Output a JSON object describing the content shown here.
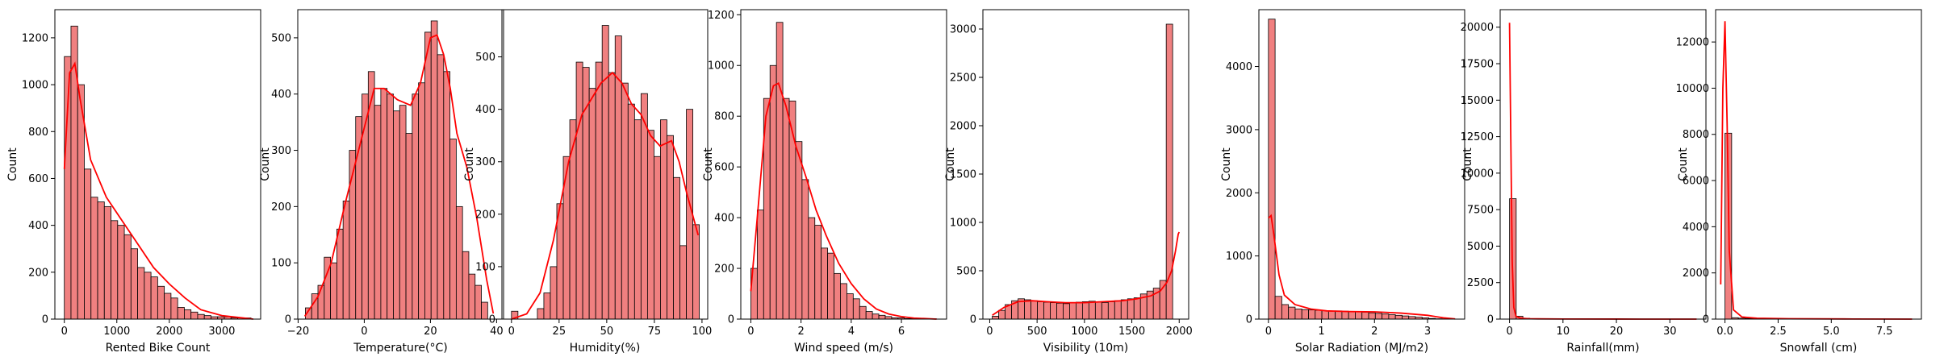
{
  "colors": {
    "bar_fill": "#f08080",
    "bar_edge": "#000000",
    "kde_line": "#ff0000",
    "axes": "#000000"
  },
  "chart_data": [
    {
      "type": "bar",
      "subtype": "histogram_kde",
      "xlabel": "Rented Bike Count",
      "ylabel": "Count",
      "xlim": [
        -180,
        3740
      ],
      "ylim": [
        0,
        1320
      ],
      "xticks": [
        0,
        1000,
        2000,
        3000
      ],
      "yticks": [
        0,
        200,
        400,
        600,
        800,
        1000,
        1200
      ],
      "xtick_labels": [
        "0",
        "1000",
        "2000",
        "3000"
      ],
      "ytick_labels": [
        "0",
        "200",
        "400",
        "600",
        "800",
        "1000",
        "1200"
      ],
      "bin_start": 0,
      "bin_width": 127,
      "values": [
        1120,
        1250,
        1000,
        640,
        520,
        500,
        480,
        420,
        400,
        360,
        300,
        220,
        200,
        180,
        140,
        110,
        90,
        50,
        40,
        30,
        20,
        15,
        10,
        10,
        10,
        5,
        5,
        5
      ],
      "kde": {
        "x": [
          0,
          100,
          200,
          300,
          500,
          800,
          1100,
          1400,
          1700,
          2000,
          2300,
          2600,
          3000,
          3400,
          3600
        ],
        "y": [
          640,
          1050,
          1090,
          940,
          680,
          520,
          420,
          320,
          220,
          150,
          90,
          40,
          15,
          5,
          0
        ]
      }
    },
    {
      "type": "bar",
      "subtype": "histogram_kde",
      "xlabel": "Temperature(°C)",
      "ylabel": "Count",
      "xlim": [
        -20.1,
        42.1
      ],
      "ylim": [
        0,
        550
      ],
      "xticks": [
        -20,
        0,
        20,
        40
      ],
      "yticks": [
        0,
        100,
        200,
        300,
        400,
        500
      ],
      "xtick_labels": [
        "−20",
        "0",
        "20",
        "40"
      ],
      "ytick_labels": [
        "0",
        "100",
        "200",
        "300",
        "400",
        "500"
      ],
      "bin_start": -17.8,
      "bin_width": 1.9,
      "values": [
        20,
        45,
        60,
        110,
        100,
        160,
        210,
        300,
        360,
        400,
        440,
        380,
        410,
        400,
        370,
        380,
        330,
        400,
        420,
        510,
        530,
        470,
        440,
        320,
        200,
        120,
        80,
        60,
        30
      ],
      "kde": {
        "x": [
          -18,
          -14,
          -10,
          -6,
          -3,
          0,
          3,
          6,
          10,
          14,
          17,
          20,
          22,
          24,
          26,
          28,
          31,
          34,
          37,
          39
        ],
        "y": [
          5,
          40,
          100,
          200,
          270,
          340,
          410,
          410,
          390,
          380,
          420,
          500,
          505,
          470,
          410,
          330,
          270,
          180,
          70,
          10
        ]
      }
    },
    {
      "type": "bar",
      "subtype": "histogram_kde",
      "xlabel": "Humidity(%)",
      "ylabel": "Count",
      "xlim": [
        -5,
        103
      ],
      "ylim": [
        0,
        590
      ],
      "xticks": [
        0,
        25,
        50,
        75,
        100
      ],
      "yticks": [
        0,
        100,
        200,
        300,
        400,
        500
      ],
      "xtick_labels": [
        "0",
        "25",
        "50",
        "75",
        "100"
      ],
      "ytick_labels": [
        "0",
        "100",
        "200",
        "300",
        "400",
        "500"
      ],
      "bin_start": 0,
      "bin_width": 3.4,
      "values": [
        15,
        0,
        0,
        0,
        20,
        50,
        100,
        220,
        310,
        380,
        490,
        480,
        440,
        490,
        560,
        470,
        540,
        450,
        410,
        380,
        430,
        360,
        310,
        380,
        350,
        270,
        140,
        400,
        180
      ],
      "kde": {
        "x": [
          0,
          8,
          15,
          22,
          30,
          37,
          42,
          47,
          53,
          58,
          63,
          68,
          73,
          78,
          84,
          88,
          92,
          95,
          98
        ],
        "y": [
          0,
          10,
          50,
          150,
          300,
          390,
          420,
          450,
          470,
          450,
          410,
          390,
          350,
          330,
          340,
          300,
          240,
          200,
          160
        ]
      }
    },
    {
      "type": "bar",
      "subtype": "histogram_kde",
      "xlabel": "Wind speed (m/s)",
      "ylabel": "Count",
      "xlim": [
        -0.4,
        7.8
      ],
      "ylim": [
        0,
        1220
      ],
      "xticks": [
        0,
        2,
        4,
        6
      ],
      "yticks": [
        0,
        200,
        400,
        600,
        800,
        1000,
        1200
      ],
      "xtick_labels": [
        "0",
        "2",
        "4",
        "6"
      ],
      "ytick_labels": [
        "0",
        "200",
        "400",
        "600",
        "800",
        "1000",
        "1200"
      ],
      "bin_start": 0,
      "bin_width": 0.255,
      "values": [
        200,
        430,
        870,
        1000,
        1170,
        870,
        860,
        700,
        550,
        400,
        370,
        280,
        260,
        180,
        140,
        100,
        80,
        50,
        30,
        20,
        15,
        10,
        5,
        5,
        2,
        2,
        1,
        1,
        1
      ],
      "kde": {
        "x": [
          0,
          0.3,
          0.6,
          0.9,
          1.1,
          1.4,
          1.8,
          2.2,
          2.6,
          3,
          3.5,
          4,
          4.5,
          5,
          5.5,
          6,
          6.5,
          7.4
        ],
        "y": [
          110,
          450,
          800,
          920,
          930,
          840,
          680,
          560,
          430,
          330,
          220,
          140,
          80,
          40,
          20,
          10,
          4,
          0
        ]
      }
    },
    {
      "type": "bar",
      "subtype": "histogram_kde",
      "xlabel": "Visibility (10m)",
      "ylabel": "Count",
      "xlim": [
        -72,
        2100
      ],
      "ylim": [
        0,
        3200
      ],
      "xticks": [
        0,
        500,
        1000,
        1500,
        2000
      ],
      "yticks": [
        0,
        500,
        1000,
        1500,
        2000,
        2500,
        3000
      ],
      "xtick_labels": [
        "0",
        "500",
        "1000",
        "1500",
        "2000"
      ],
      "ytick_labels": [
        "0",
        "500",
        "1000",
        "1500",
        "2000",
        "2500",
        "3000"
      ],
      "bin_start": 27,
      "bin_width": 68,
      "values": [
        30,
        90,
        150,
        190,
        210,
        200,
        190,
        180,
        175,
        170,
        165,
        160,
        170,
        175,
        180,
        185,
        175,
        170,
        180,
        190,
        200,
        210,
        220,
        260,
        290,
        320,
        400,
        3050
      ],
      "kde": {
        "x": [
          27,
          150,
          300,
          450,
          600,
          800,
          1000,
          1200,
          1400,
          1550,
          1700,
          1800,
          1870,
          1920,
          1960,
          1990,
          2000
        ],
        "y": [
          40,
          120,
          180,
          190,
          180,
          170,
          170,
          180,
          190,
          210,
          240,
          290,
          380,
          500,
          700,
          880,
          900
        ]
      }
    },
    {
      "type": "bar",
      "subtype": "histogram_kde",
      "xlabel": "Solar Radiation (MJ/m2)",
      "ylabel": "Count",
      "xlim": [
        -0.18,
        3.7
      ],
      "ylim": [
        0,
        4900
      ],
      "xticks": [
        0,
        1,
        2,
        3
      ],
      "yticks": [
        0,
        1000,
        2000,
        3000,
        4000
      ],
      "xtick_labels": [
        "0",
        "1",
        "2",
        "3"
      ],
      "ytick_labels": [
        "0",
        "1000",
        "2000",
        "3000",
        "4000"
      ],
      "bin_start": 0,
      "bin_width": 0.126,
      "values": [
        4750,
        360,
        230,
        190,
        160,
        150,
        145,
        140,
        135,
        130,
        130,
        125,
        120,
        115,
        110,
        100,
        90,
        80,
        70,
        60,
        50,
        40,
        30,
        20,
        10,
        5,
        3,
        1
      ],
      "kde": {
        "x": [
          0,
          0.05,
          0.1,
          0.2,
          0.3,
          0.5,
          0.8,
          1.1,
          1.5,
          2,
          2.5,
          3,
          3.3,
          3.52
        ],
        "y": [
          1600,
          1640,
          1350,
          700,
          380,
          230,
          160,
          130,
          120,
          115,
          95,
          60,
          20,
          3
        ]
      }
    },
    {
      "type": "bar",
      "subtype": "histogram_kde",
      "xlabel": "Rainfall(mm)",
      "ylabel": "Count",
      "xlim": [
        -1.75,
        36.75
      ],
      "ylim": [
        0,
        21200
      ],
      "xticks": [
        0,
        10,
        20,
        30
      ],
      "yticks": [
        0,
        2500,
        5000,
        7500,
        10000,
        12500,
        15000,
        17500,
        20000
      ],
      "xtick_labels": [
        "0",
        "10",
        "20",
        "30"
      ],
      "ytick_labels": [
        "0",
        "2500",
        "5000",
        "7500",
        "10000",
        "12500",
        "15000",
        "17500",
        "20000"
      ],
      "bin_start": 0,
      "bin_width": 1.25,
      "values": [
        8250,
        200,
        60,
        30,
        15,
        10,
        8,
        6,
        5,
        4,
        3,
        3,
        2,
        2,
        2,
        1,
        1,
        1,
        1,
        1,
        1,
        1,
        1,
        1,
        1,
        1,
        1,
        1
      ],
      "kde": {
        "x": [
          0,
          0.25,
          0.5,
          0.8,
          1.2,
          2,
          4,
          10,
          20,
          35
        ],
        "y": [
          20300,
          12000,
          4000,
          800,
          200,
          60,
          20,
          5,
          2,
          0
        ]
      }
    },
    {
      "type": "bar",
      "subtype": "histogram_kde",
      "xlabel": "Snowfall (cm)",
      "ylabel": "Count",
      "xlim": [
        -0.44,
        9.24
      ],
      "ylim": [
        0,
        13400
      ],
      "xticks": [
        0,
        2.5,
        5,
        7.5
      ],
      "yticks": [
        0,
        2000,
        4000,
        6000,
        8000,
        10000,
        12000
      ],
      "xtick_labels": [
        "0.0",
        "2.5",
        "5.0",
        "7.5"
      ],
      "ytick_labels": [
        "0",
        "2000",
        "4000",
        "6000",
        "8000",
        "10000",
        "12000"
      ],
      "bin_start": 0,
      "bin_width": 0.314,
      "values": [
        8050,
        60,
        40,
        30,
        25,
        20,
        15,
        10,
        8,
        6,
        5,
        4,
        3,
        2,
        2,
        1,
        1,
        1,
        1,
        1,
        1,
        1,
        1,
        1,
        1,
        1,
        1,
        1
      ],
      "kde": {
        "x": [
          -0.2,
          -0.1,
          0,
          0.1,
          0.2,
          0.4,
          0.8,
          1.5,
          3,
          6,
          8.8
        ],
        "y": [
          1500,
          10000,
          12900,
          8500,
          3000,
          400,
          90,
          40,
          15,
          5,
          0
        ]
      }
    }
  ]
}
